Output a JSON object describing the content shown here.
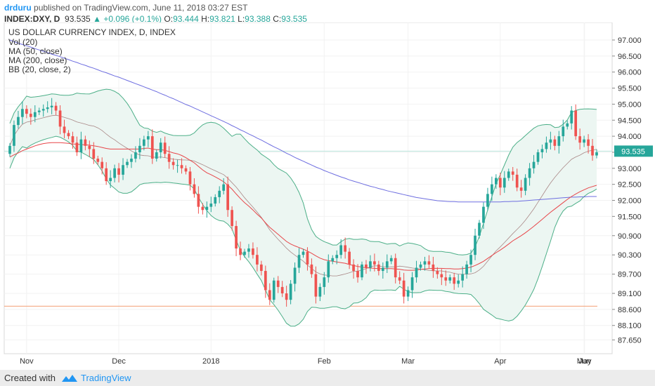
{
  "header": {
    "author": "drduru",
    "published_text": "published on TradingView.com, June 11, 2018 03:27 EST",
    "symbol": "INDEX:DXY, D",
    "last": "93.535",
    "change": "+0.096 (+0.1%)",
    "o_label": "O:",
    "o": "93.444",
    "h_label": "H:",
    "h": "93.821",
    "l_label": "L:",
    "l": "93.388",
    "c_label": "C:",
    "c": "93.535"
  },
  "studies": [
    "US DOLLAR CURRENCY INDEX, D, INDEX",
    "Vol (20)",
    "MA (50, close)",
    "MA (200, close)",
    "BB (20, close, 2)"
  ],
  "last_price_tag": "93.535",
  "footer": {
    "created_with": "Created with",
    "brand": "TradingView"
  },
  "colors": {
    "up": "#26a69a",
    "down": "#ef5350",
    "ma50": "#e8464a",
    "ma200": "#6e6ee0",
    "bb_line": "#4caf88",
    "bb_basis": "#8d5a5a",
    "bb_fill": "#ecf6f2",
    "support": "#f4a882"
  },
  "chart_data": {
    "type": "candlestick",
    "title": "US DOLLAR CURRENCY INDEX, D, INDEX",
    "y_ticks": [
      "97.000",
      "96.500",
      "96.000",
      "95.500",
      "95.000",
      "94.500",
      "94.000",
      "93.500",
      "93.000",
      "92.500",
      "92.000",
      "91.500",
      "90.900",
      "90.300",
      "89.700",
      "89.100",
      "88.600",
      "88.100",
      "87.650"
    ],
    "x_ticks": [
      "Nov",
      "Dec",
      "2018",
      "Feb",
      "Mar",
      "Apr",
      "May",
      "Jun"
    ],
    "ylim": [
      87.5,
      97.3
    ],
    "last_price": 93.535,
    "support_line": 88.7,
    "closes": [
      93.7,
      94.35,
      94.6,
      94.85,
      94.7,
      94.6,
      94.75,
      94.8,
      94.85,
      94.9,
      94.95,
      94.8,
      94.3,
      94.1,
      94.0,
      93.8,
      93.5,
      93.9,
      93.7,
      93.6,
      93.3,
      93.2,
      93.0,
      92.6,
      92.7,
      93.0,
      92.8,
      93.1,
      93.2,
      93.3,
      93.5,
      93.7,
      93.9,
      94.0,
      93.3,
      93.5,
      93.8,
      93.45,
      93.2,
      93.1,
      93.1,
      93.0,
      92.9,
      92.5,
      92.2,
      91.8,
      91.7,
      91.8,
      91.9,
      92.1,
      92.3,
      92.5,
      91.7,
      91.2,
      90.5,
      90.3,
      90.4,
      90.5,
      90.3,
      90.0,
      89.8,
      89.2,
      88.9,
      89.5,
      89.3,
      89.1,
      88.9,
      89.4,
      89.9,
      90.3,
      90.4,
      90.0,
      89.7,
      89.0,
      89.3,
      89.6,
      90.1,
      90.2,
      90.3,
      90.6,
      90.4,
      90.0,
      89.8,
      89.6,
      90.0,
      89.9,
      90.1,
      90.0,
      89.8,
      89.9,
      90.1,
      90.2,
      89.6,
      89.5,
      89.0,
      89.2,
      89.6,
      89.9,
      90.0,
      90.1,
      90.0,
      89.8,
      89.7,
      89.6,
      89.5,
      89.6,
      89.4,
      89.5,
      89.7,
      90.0,
      90.3,
      90.9,
      91.3,
      91.8,
      92.2,
      92.5,
      92.7,
      92.4,
      92.7,
      92.9,
      92.8,
      92.4,
      92.3,
      92.7,
      93.0,
      93.2,
      93.5,
      93.6,
      93.8,
      93.9,
      93.7,
      94.0,
      94.3,
      94.4,
      94.8,
      94.0,
      93.8,
      93.9,
      93.7,
      93.4,
      93.5
    ],
    "ma50": [
      93.35,
      93.42,
      93.48,
      93.55,
      93.6,
      93.65,
      93.7,
      93.74,
      93.77,
      93.79,
      93.8,
      93.8,
      93.8,
      93.79,
      93.78,
      93.76,
      93.75,
      93.74,
      93.73,
      93.72,
      93.7,
      93.68,
      93.65,
      93.62,
      93.6,
      93.6,
      93.6,
      93.6,
      93.6,
      93.6,
      93.6,
      93.6,
      93.62,
      93.63,
      93.6,
      93.58,
      93.58,
      93.56,
      93.52,
      93.48,
      93.45,
      93.4,
      93.33,
      93.25,
      93.17,
      93.06,
      92.95,
      92.86,
      92.8,
      92.73,
      92.66,
      92.58,
      92.47,
      92.35,
      92.2,
      92.06,
      91.93,
      91.82,
      91.7,
      91.57,
      91.45,
      91.3,
      91.16,
      91.05,
      90.94,
      90.83,
      90.72,
      90.64,
      90.58,
      90.53,
      90.48,
      90.42,
      90.35,
      90.27,
      90.2,
      90.15,
      90.12,
      90.1,
      90.08,
      90.06,
      90.04,
      90.0,
      89.97,
      89.94,
      89.92,
      89.9,
      89.89,
      89.88,
      89.87,
      89.87,
      89.87,
      89.87,
      89.86,
      89.85,
      89.83,
      89.82,
      89.82,
      89.83,
      89.85,
      89.86,
      89.87,
      89.88,
      89.88,
      89.88,
      89.87,
      89.87,
      89.86,
      89.86,
      89.87,
      89.89,
      89.92,
      89.97,
      90.03,
      90.1,
      90.19,
      90.28,
      90.37,
      90.45,
      90.54,
      90.64,
      90.74,
      90.82,
      90.9,
      90.99,
      91.09,
      91.19,
      91.3,
      91.41,
      91.52,
      91.63,
      91.73,
      91.83,
      91.93,
      92.03,
      92.12,
      92.2,
      92.27,
      92.33,
      92.39,
      92.43,
      92.47
    ],
    "ma200": [
      97.0,
      96.95,
      96.9,
      96.86,
      96.82,
      96.78,
      96.73,
      96.69,
      96.65,
      96.61,
      96.56,
      96.52,
      96.48,
      96.43,
      96.39,
      96.34,
      96.3,
      96.25,
      96.21,
      96.16,
      96.12,
      96.07,
      96.02,
      95.98,
      95.93,
      95.88,
      95.84,
      95.79,
      95.74,
      95.69,
      95.64,
      95.59,
      95.54,
      95.49,
      95.44,
      95.39,
      95.33,
      95.28,
      95.22,
      95.17,
      95.11,
      95.05,
      94.99,
      94.94,
      94.88,
      94.82,
      94.76,
      94.7,
      94.64,
      94.58,
      94.52,
      94.46,
      94.4,
      94.33,
      94.27,
      94.2,
      94.14,
      94.07,
      94.01,
      93.94,
      93.88,
      93.81,
      93.74,
      93.67,
      93.61,
      93.54,
      93.47,
      93.41,
      93.34,
      93.28,
      93.22,
      93.16,
      93.1,
      93.04,
      92.99,
      92.93,
      92.88,
      92.83,
      92.78,
      92.73,
      92.69,
      92.64,
      92.6,
      92.56,
      92.52,
      92.48,
      92.44,
      92.41,
      92.37,
      92.34,
      92.3,
      92.27,
      92.24,
      92.21,
      92.18,
      92.15,
      92.12,
      92.09,
      92.07,
      92.05,
      92.03,
      92.01,
      91.99,
      91.98,
      91.97,
      91.96,
      91.96,
      91.95,
      91.95,
      91.95,
      91.95,
      91.95,
      91.95,
      91.95,
      91.95,
      91.95,
      91.95,
      91.95,
      91.96,
      91.96,
      91.97,
      91.97,
      91.98,
      91.99,
      92.0,
      92.01,
      92.02,
      92.03,
      92.04,
      92.05,
      92.06,
      92.07,
      92.08,
      92.09,
      92.1,
      92.1,
      92.11,
      92.11,
      92.12,
      92.12,
      92.12
    ]
  }
}
